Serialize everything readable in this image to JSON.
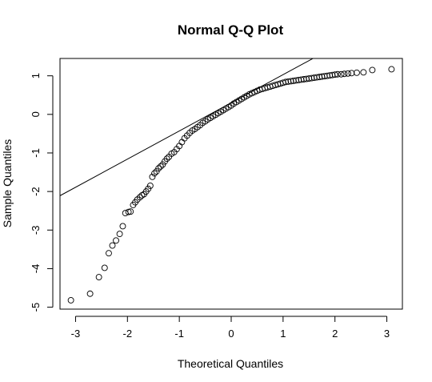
{
  "chart_data": {
    "type": "scatter",
    "title": "Normal Q-Q Plot",
    "xlabel": "Theoretical Quantiles",
    "ylabel": "Sample Quantiles",
    "xlim": [
      -3.3,
      3.3
    ],
    "ylim": [
      -5.05,
      1.45
    ],
    "x_ticks": [
      -3,
      -2,
      -1,
      0,
      1,
      2,
      3
    ],
    "y_ticks": [
      -5,
      -4,
      -3,
      -2,
      -1,
      0,
      1
    ],
    "x_tick_labels": [
      "-3",
      "-2",
      "-1",
      "0",
      "1",
      "2",
      "3"
    ],
    "y_tick_labels": [
      "-5",
      "-4",
      "-3",
      "-2",
      "-1",
      "0",
      "1"
    ],
    "grid": false,
    "legend": "none",
    "marker": "open-circle",
    "point_color": "#000000",
    "reference_line": {
      "intercept": 0.3,
      "slope": 0.73
    },
    "points": [
      [
        -3.09,
        -4.82
      ],
      [
        -2.72,
        -4.65
      ],
      [
        -2.55,
        -4.22
      ],
      [
        -2.44,
        -3.98
      ],
      [
        -2.36,
        -3.6
      ],
      [
        -2.29,
        -3.4
      ],
      [
        -2.22,
        -3.27
      ],
      [
        -2.15,
        -3.1
      ],
      [
        -2.09,
        -2.9
      ],
      [
        -2.04,
        -2.56
      ],
      [
        -1.98,
        -2.53
      ],
      [
        -1.94,
        -2.52
      ],
      [
        -1.89,
        -2.35
      ],
      [
        -1.85,
        -2.28
      ],
      [
        -1.81,
        -2.21
      ],
      [
        -1.76,
        -2.15
      ],
      [
        -1.72,
        -2.1
      ],
      [
        -1.68,
        -2.07
      ],
      [
        -1.64,
        -2.0
      ],
      [
        -1.6,
        -1.93
      ],
      [
        -1.56,
        -1.85
      ],
      [
        -1.52,
        -1.62
      ],
      [
        -1.48,
        -1.53
      ],
      [
        -1.44,
        -1.48
      ],
      [
        -1.4,
        -1.4
      ],
      [
        -1.36,
        -1.35
      ],
      [
        -1.32,
        -1.3
      ],
      [
        -1.28,
        -1.22
      ],
      [
        -1.24,
        -1.15
      ],
      [
        -1.2,
        -1.1
      ],
      [
        -1.15,
        -1.02
      ],
      [
        -1.1,
        -0.98
      ],
      [
        -1.05,
        -0.9
      ],
      [
        -1.0,
        -0.82
      ],
      [
        -0.95,
        -0.72
      ],
      [
        -0.9,
        -0.62
      ],
      [
        -0.85,
        -0.55
      ],
      [
        -0.8,
        -0.48
      ],
      [
        -0.75,
        -0.42
      ],
      [
        -0.7,
        -0.38
      ],
      [
        -0.65,
        -0.33
      ],
      [
        -0.6,
        -0.28
      ],
      [
        -0.55,
        -0.22
      ],
      [
        -0.5,
        -0.18
      ],
      [
        -0.45,
        -0.13
      ],
      [
        -0.4,
        -0.09
      ],
      [
        -0.35,
        -0.05
      ],
      [
        -0.3,
        -0.01
      ],
      [
        -0.25,
        0.03
      ],
      [
        -0.2,
        0.07
      ],
      [
        -0.15,
        0.11
      ],
      [
        -0.1,
        0.15
      ],
      [
        -0.05,
        0.19
      ],
      [
        0.0,
        0.23
      ],
      [
        0.05,
        0.28
      ],
      [
        0.1,
        0.32
      ],
      [
        0.15,
        0.36
      ],
      [
        0.2,
        0.4
      ],
      [
        0.25,
        0.44
      ],
      [
        0.3,
        0.48
      ],
      [
        0.35,
        0.52
      ],
      [
        0.4,
        0.55
      ],
      [
        0.45,
        0.58
      ],
      [
        0.5,
        0.61
      ],
      [
        0.55,
        0.64
      ],
      [
        0.6,
        0.66
      ],
      [
        0.65,
        0.68
      ],
      [
        0.7,
        0.7
      ],
      [
        0.75,
        0.72
      ],
      [
        0.8,
        0.74
      ],
      [
        0.85,
        0.76
      ],
      [
        0.9,
        0.78
      ],
      [
        0.95,
        0.8
      ],
      [
        1.0,
        0.82
      ],
      [
        1.05,
        0.84
      ],
      [
        1.1,
        0.85
      ],
      [
        1.15,
        0.86
      ],
      [
        1.2,
        0.87
      ],
      [
        1.25,
        0.88
      ],
      [
        1.3,
        0.89
      ],
      [
        1.35,
        0.9
      ],
      [
        1.4,
        0.91
      ],
      [
        1.45,
        0.92
      ],
      [
        1.5,
        0.93
      ],
      [
        1.55,
        0.94
      ],
      [
        1.6,
        0.95
      ],
      [
        1.65,
        0.96
      ],
      [
        1.7,
        0.97
      ],
      [
        1.75,
        0.98
      ],
      [
        1.8,
        0.99
      ],
      [
        1.85,
        1.0
      ],
      [
        1.9,
        1.01
      ],
      [
        1.95,
        1.02
      ],
      [
        2.0,
        1.03
      ],
      [
        2.05,
        1.04
      ],
      [
        2.12,
        1.04
      ],
      [
        2.18,
        1.05
      ],
      [
        2.25,
        1.06
      ],
      [
        2.32,
        1.07
      ],
      [
        2.42,
        1.08
      ],
      [
        2.55,
        1.09
      ],
      [
        2.72,
        1.15
      ],
      [
        3.09,
        1.17
      ]
    ]
  }
}
